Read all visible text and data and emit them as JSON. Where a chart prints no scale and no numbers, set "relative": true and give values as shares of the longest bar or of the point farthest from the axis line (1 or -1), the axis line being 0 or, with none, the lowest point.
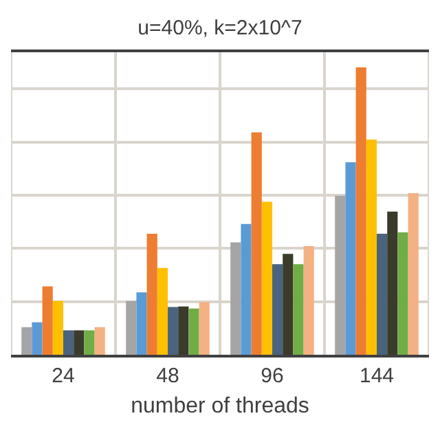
{
  "chart_data": {
    "type": "bar",
    "title": "u=40%, k=2x10^7",
    "xlabel": "number of threads",
    "categories": [
      "24",
      "48",
      "96",
      "144"
    ],
    "relative": true,
    "grid": true,
    "series": [
      {
        "color": "#a5a5a5",
        "values": [
          0.096,
          0.187,
          0.391,
          0.553
        ]
      },
      {
        "color": "#5b9bd5",
        "values": [
          0.113,
          0.217,
          0.455,
          0.67
        ]
      },
      {
        "color": "#ed7d31",
        "values": [
          0.238,
          0.421,
          0.774,
          1
        ]
      },
      {
        "color": "#ffc000",
        "values": [
          0.187,
          0.302,
          0.532,
          0.749
        ]
      },
      {
        "color": "#4a6480",
        "values": [
          0.085,
          0.166,
          0.315,
          0.421
        ]
      },
      {
        "color": "#3b3b2b",
        "values": [
          0.085,
          0.168,
          0.351,
          0.498
        ]
      },
      {
        "color": "#70ad47",
        "values": [
          0.085,
          0.161,
          0.315,
          0.426
        ]
      },
      {
        "color": "#f4b183",
        "values": [
          0.096,
          0.183,
          0.378,
          0.562
        ]
      }
    ]
  }
}
